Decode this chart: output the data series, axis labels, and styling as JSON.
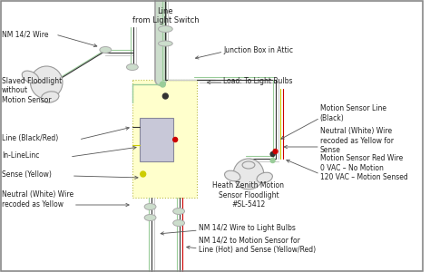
{
  "bg_color": "#ffffff",
  "wire_green": "#99cc99",
  "wire_yellow": "#cccc00",
  "wire_black": "#333333",
  "wire_red": "#cc0000",
  "wire_white": "#cccccc",
  "junction_box_fill": "#ffffcc",
  "junction_box_border": "#bbbb44",
  "conduit_fill": "#ccddcc",
  "conduit_edge": "#aaaaaa",
  "device_fill": "#c8c8d8",
  "device_edge": "#888899",
  "fixture_fill": "#e8e8e8",
  "fixture_edge": "#999999",
  "label_color": "#222222",
  "arrow_color": "#555555",
  "labels": {
    "line_from_switch": "Line\nfrom Light Switch",
    "nm_142_wire": "NM 14/2 Wire",
    "junction_box_attic": "Junction Box in Attic",
    "load_to_bulbs": "Load: To Light Bulbs",
    "slaved_floodlight": "Slaved Floodlight\nwithout\nMotion Sensor",
    "line_black_red": "Line (Black/Red)",
    "in_line_linc": "In-LineLinc",
    "sense_yellow": "Sense (Yellow)",
    "neutral_white_recoded": "Neutral (White) Wire\nrecoded as Yellow",
    "motion_sensor_line": "Motion Sensor Line\n(Black)",
    "neutral_white_yellow_sense": "Neutral (White) Wire\nrecoded as Yellow for\nSense",
    "motion_sensor_red": "Motion Sensor Red Wire\n0 VAC – No Motion\n120 VAC – Motion Sensed",
    "heath_zenith": "Heath Zenith Motion\nSensor Floodlight\n#SL-5412",
    "nm_142_to_bulbs": "NM 14/2 Wire to Light Bulbs",
    "nm_142_to_motion": "NM 14/2 to Motion Sensor for\nLine (Hot) and Sense (Yellow/Red)"
  }
}
